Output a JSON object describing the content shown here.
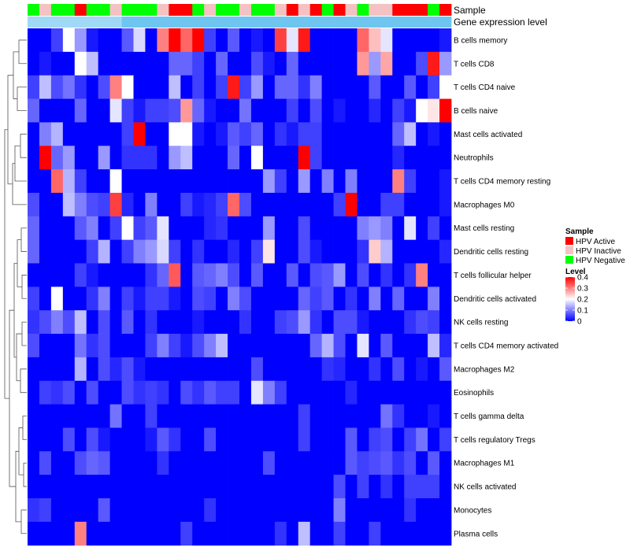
{
  "chart_data": {
    "type": "heatmap",
    "rows": [
      "B cells memory",
      "T cells CD8",
      "T cells CD4 naive",
      "B cells naive",
      "Mast cells activated",
      "Neutrophils",
      "T cells CD4 memory resting",
      "Macrophages M0",
      "Mast cells resting",
      "Dendritic cells resting",
      "T cells follicular helper",
      "Dendritic cells activated",
      "NK cells resting",
      "T cells CD4 memory activated",
      "Macrophages M2",
      "Eosinophils",
      "T cells gamma delta",
      "T cells regulatory  Tregs",
      "Macrophages M1",
      "NK cells activated",
      "Monocytes",
      "Plasma cells"
    ],
    "columns": 36,
    "sample_annotation": [
      "N",
      "I",
      "N",
      "N",
      "A",
      "N",
      "N",
      "I",
      "N",
      "N",
      "N",
      "I",
      "A",
      "A",
      "N",
      "I",
      "N",
      "N",
      "I",
      "N",
      "N",
      "I",
      "A",
      "I",
      "A",
      "N",
      "A",
      "I",
      "N",
      "I",
      "I",
      "A",
      "A",
      "A",
      "N",
      "A"
    ],
    "values": [
      [
        0,
        0,
        0.05,
        0.2,
        0.12,
        0.02,
        0,
        0,
        0.07,
        0.17,
        0,
        0.3,
        0.4,
        0.32,
        0.4,
        0.05,
        0,
        0.07,
        0,
        0.02,
        0,
        0.35,
        0.18,
        0.38,
        0,
        0,
        0,
        0,
        0.32,
        0.25,
        0.18,
        0,
        0,
        0,
        0,
        0.02
      ],
      [
        0,
        0.02,
        0,
        0,
        0.2,
        0.15,
        0,
        0,
        0,
        0,
        0,
        0,
        0.08,
        0.08,
        0.05,
        0,
        0.08,
        0,
        0,
        0.06,
        0.02,
        0,
        0.08,
        0,
        0,
        0,
        0,
        0,
        0.28,
        0.12,
        0.27,
        0,
        0,
        0.06,
        0.38,
        0.12
      ],
      [
        0.05,
        0.15,
        0.06,
        0.09,
        0.04,
        0,
        0.06,
        0.3,
        0.2,
        0,
        0,
        0,
        0.15,
        0,
        0.05,
        0,
        0.05,
        0.38,
        0.05,
        0.12,
        0,
        0.08,
        0.08,
        0.04,
        0.1,
        0,
        0,
        0,
        0,
        0.07,
        0,
        0,
        0.07,
        0,
        0.05,
        0.2
      ],
      [
        0.08,
        0,
        0,
        0,
        0.08,
        0,
        0,
        0.18,
        0.05,
        0.02,
        0.05,
        0.05,
        0.06,
        0.28,
        0.08,
        0.02,
        0,
        0,
        0.09,
        0,
        0,
        0,
        0.05,
        0,
        0.06,
        0,
        0.02,
        0,
        0,
        0.03,
        0,
        0.05,
        0.02,
        0.2,
        0.22,
        0.4
      ],
      [
        0,
        0.1,
        0.14,
        0,
        0,
        0,
        0,
        0,
        0.05,
        0.4,
        0,
        0,
        0.2,
        0.2,
        0.02,
        0,
        0.02,
        0.07,
        0.05,
        0.08,
        0,
        0.04,
        0.02,
        0.05,
        0.05,
        0,
        0,
        0,
        0,
        0,
        0,
        0.08,
        0.15,
        0,
        0.02,
        0
      ],
      [
        0,
        0.42,
        0.08,
        0.12,
        0,
        0,
        0.12,
        0,
        0.04,
        0.04,
        0.04,
        0,
        0.12,
        0.15,
        0,
        0,
        0,
        0.08,
        0,
        0.2,
        0,
        0,
        0,
        0.42,
        0.05,
        0,
        0,
        0,
        0,
        0,
        0,
        0.03,
        0,
        0,
        0,
        0
      ],
      [
        0,
        0,
        0.32,
        0.14,
        0.05,
        0,
        0,
        0.2,
        0,
        0,
        0,
        0,
        0,
        0,
        0,
        0,
        0,
        0,
        0,
        0,
        0.12,
        0.05,
        0,
        0.12,
        0,
        0.1,
        0,
        0.1,
        0,
        0,
        0,
        0.3,
        0.05,
        0,
        0,
        0.02
      ],
      [
        0.06,
        0,
        0,
        0.15,
        0.1,
        0.06,
        0.05,
        0.35,
        0.03,
        0,
        0.1,
        0,
        0,
        0.05,
        0.02,
        0.03,
        0.05,
        0.32,
        0.06,
        0,
        0,
        0,
        0,
        0,
        0,
        0,
        0.05,
        0.4,
        0,
        0,
        0.05,
        0.05,
        0,
        0,
        0,
        0.02
      ],
      [
        0.08,
        0,
        0,
        0,
        0.07,
        0.1,
        0,
        0.05,
        0.2,
        0.05,
        0.07,
        0.18,
        0,
        0,
        0,
        0.03,
        0.04,
        0,
        0,
        0,
        0.12,
        0,
        0,
        0.06,
        0,
        0,
        0,
        0,
        0.1,
        0.12,
        0.1,
        0,
        0.18,
        0,
        0.05,
        0
      ],
      [
        0.08,
        0,
        0,
        0,
        0,
        0.05,
        0.14,
        0,
        0.05,
        0.1,
        0.12,
        0.17,
        0.05,
        0,
        0.04,
        0,
        0,
        0.03,
        0,
        0.05,
        0.22,
        0,
        0,
        0.06,
        0.02,
        0,
        0,
        0,
        0.04,
        0.24,
        0.14,
        0,
        0,
        0,
        0,
        0.03
      ],
      [
        0,
        0,
        0,
        0,
        0.05,
        0.02,
        0,
        0,
        0,
        0,
        0.04,
        0.08,
        0.33,
        0,
        0.07,
        0.08,
        0.1,
        0.06,
        0,
        0.07,
        0,
        0,
        0.07,
        0,
        0.06,
        0.07,
        0.12,
        0,
        0.06,
        0,
        0.04,
        0,
        0.04,
        0.3,
        0,
        0
      ],
      [
        0.05,
        0,
        0.2,
        0,
        0,
        0.04,
        0.1,
        0,
        0.05,
        0.02,
        0.05,
        0.05,
        0.02,
        0,
        0.06,
        0.05,
        0,
        0.1,
        0.06,
        0,
        0,
        0,
        0,
        0.08,
        0.05,
        0.07,
        0,
        0.04,
        0,
        0.1,
        0,
        0.08,
        0,
        0,
        0.1,
        0
      ],
      [
        0.04,
        0.06,
        0.1,
        0.06,
        0.15,
        0,
        0.06,
        0,
        0.07,
        0,
        0.04,
        0,
        0,
        0,
        0.02,
        0,
        0,
        0,
        0.04,
        0,
        0,
        0.05,
        0.06,
        0.12,
        0.04,
        0,
        0.06,
        0.06,
        0.02,
        0,
        0,
        0,
        0.04,
        0.06,
        0.05,
        0
      ],
      [
        0.06,
        0,
        0,
        0,
        0.09,
        0.04,
        0.06,
        0,
        0,
        0,
        0.05,
        0.1,
        0.05,
        0.02,
        0.06,
        0.1,
        0.15,
        0,
        0,
        0,
        0,
        0,
        0,
        0,
        0.08,
        0.14,
        0.06,
        0,
        0.18,
        0,
        0.07,
        0,
        0,
        0,
        0.15,
        0.03
      ],
      [
        0,
        0,
        0,
        0,
        0.14,
        0,
        0.06,
        0.03,
        0.06,
        0.02,
        0,
        0,
        0,
        0,
        0,
        0,
        0,
        0,
        0,
        0.06,
        0,
        0,
        0,
        0,
        0,
        0.04,
        0.03,
        0,
        0,
        0.04,
        0,
        0.06,
        0,
        0.02,
        0,
        0.07
      ],
      [
        0,
        0.05,
        0.04,
        0.06,
        0,
        0.06,
        0,
        0,
        0.06,
        0.04,
        0.05,
        0.04,
        0,
        0.06,
        0.04,
        0.07,
        0.05,
        0.05,
        0,
        0.18,
        0.1,
        0.05,
        0,
        0,
        0,
        0,
        0,
        0.03,
        0,
        0,
        0,
        0,
        0,
        0,
        0,
        0
      ],
      [
        0,
        0,
        0,
        0,
        0,
        0,
        0,
        0.09,
        0,
        0,
        0.05,
        0,
        0,
        0,
        0,
        0,
        0,
        0,
        0,
        0,
        0,
        0,
        0,
        0.05,
        0,
        0,
        0,
        0,
        0,
        0,
        0.09,
        0.04,
        0,
        0,
        0.02,
        0
      ],
      [
        0,
        0,
        0,
        0.06,
        0,
        0.06,
        0.02,
        0,
        0,
        0,
        0.02,
        0.07,
        0.04,
        0,
        0,
        0.06,
        0,
        0,
        0,
        0,
        0,
        0,
        0,
        0.05,
        0,
        0,
        0,
        0.07,
        0,
        0.05,
        0.06,
        0,
        0.05,
        0.09,
        0,
        0.05
      ],
      [
        0,
        0.06,
        0,
        0,
        0.06,
        0.08,
        0.07,
        0,
        0,
        0,
        0,
        0.04,
        0,
        0,
        0,
        0,
        0,
        0,
        0,
        0,
        0.06,
        0,
        0,
        0,
        0,
        0,
        0,
        0.07,
        0.05,
        0.06,
        0.07,
        0.04,
        0.06,
        0,
        0.07,
        0
      ],
      [
        0,
        0,
        0,
        0,
        0,
        0,
        0,
        0,
        0,
        0,
        0,
        0,
        0,
        0,
        0,
        0,
        0,
        0,
        0,
        0,
        0,
        0,
        0,
        0,
        0,
        0,
        0.06,
        0,
        0.05,
        0,
        0.04,
        0,
        0.05,
        0.05,
        0.05,
        0
      ],
      [
        0.04,
        0.05,
        0,
        0,
        0,
        0,
        0.07,
        0,
        0,
        0,
        0,
        0,
        0,
        0,
        0,
        0.04,
        0,
        0,
        0,
        0,
        0,
        0,
        0,
        0,
        0,
        0,
        0.1,
        0,
        0,
        0,
        0,
        0,
        0.04,
        0,
        0,
        0
      ],
      [
        0,
        0,
        0,
        0,
        0.3,
        0,
        0,
        0,
        0,
        0,
        0,
        0,
        0,
        0.05,
        0,
        0,
        0,
        0,
        0,
        0,
        0,
        0.04,
        0,
        0.15,
        0,
        0,
        0.05,
        0,
        0,
        0.05,
        0,
        0,
        0,
        0,
        0,
        0
      ]
    ],
    "annotations": {
      "sample_label": "Sample",
      "gene_label": "Gene expression level"
    },
    "legend": {
      "sample_title": "Sample",
      "sample_items": [
        {
          "key": "A",
          "label": "HPV Active",
          "color": "#ff0000"
        },
        {
          "key": "I",
          "label": "HPV Inactive",
          "color": "#f4c2c2"
        },
        {
          "key": "N",
          "label": "HPV Negative",
          "color": "#00ff00"
        }
      ],
      "level_title": "Level",
      "level_ticks": [
        "0.4",
        "0.3",
        "0.2",
        "0.1",
        "0"
      ],
      "level_range": [
        0,
        0.4
      ]
    },
    "colors": {
      "low": "#0000ff",
      "mid": "#ffffff",
      "high": "#ff0000",
      "gene_bar": "#6ec6f0",
      "gene_bar_light": "#9fd9f5"
    }
  }
}
